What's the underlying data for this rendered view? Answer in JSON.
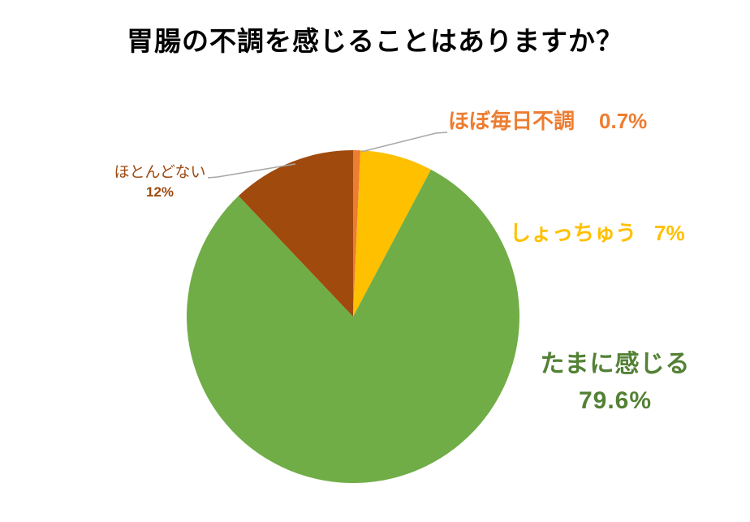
{
  "chart_data": {
    "type": "pie",
    "title": "胃腸の不調を感じることはありますか？",
    "title_color": "#000000",
    "background": "#FFFFFF",
    "leader_line_color": "#A6A6A6",
    "start_angle_deg": 0,
    "direction": "clockwise",
    "legend": "none",
    "categories": [
      "ほぼ毎日不調",
      "しょっちゅう",
      "たまに感じる",
      "ほとんどない"
    ],
    "values": [
      0.7,
      7,
      79.6,
      12
    ],
    "slices": [
      {
        "label": "ほぼ毎日不調",
        "value": 0.7,
        "value_label": "0.7%",
        "color": "#ED7D31",
        "label_color": "#ED7D31"
      },
      {
        "label": "しょっちゅう",
        "value": 7,
        "value_label": "7%",
        "color": "#FFC000",
        "label_color": "#FFC000"
      },
      {
        "label": "たまに感じる",
        "value": 79.6,
        "value_label": "79.6%",
        "color": "#70AD47",
        "label_color": "#538135"
      },
      {
        "label": "ほとんどない",
        "value": 12,
        "value_label": "12%",
        "color": "#A04A0E",
        "label_color": "#9C4A10"
      }
    ]
  }
}
